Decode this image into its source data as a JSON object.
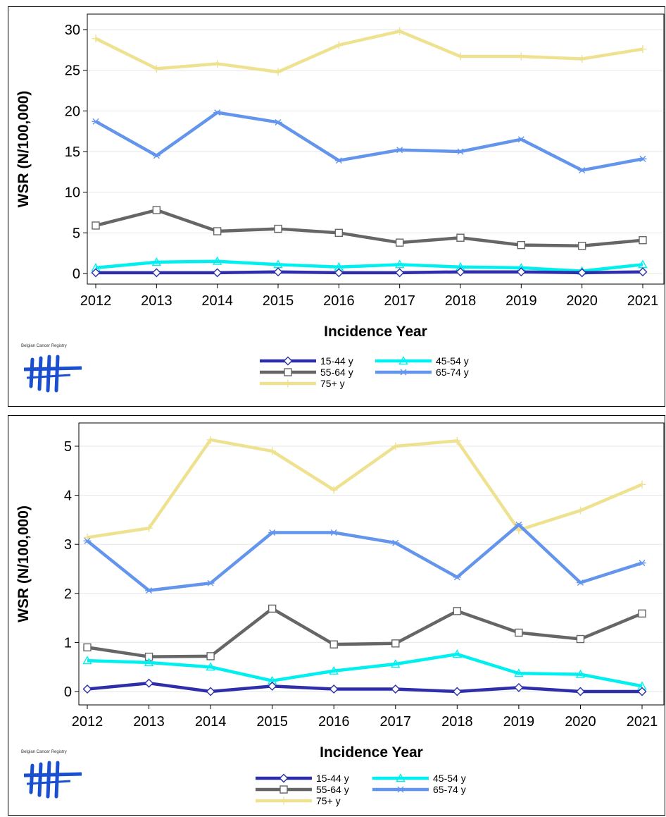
{
  "logo": {
    "text": "Belgian Cancer Registry"
  },
  "colors": {
    "15-44 y": "#2e2eaa",
    "45-54 y": "#00f0f0",
    "55-64 y": "#666666",
    "65-74 y": "#6495ed",
    "75+ y": "#eee290"
  },
  "chart_data": [
    {
      "type": "line",
      "xlabel": "Incidence Year",
      "ylabel": "WSR (N/100,000)",
      "x": [
        2012,
        2013,
        2014,
        2015,
        2016,
        2017,
        2018,
        2019,
        2020,
        2021
      ],
      "ylim": [
        0,
        30
      ],
      "yticks": [
        0,
        5,
        10,
        15,
        20,
        25,
        30
      ],
      "grid": true,
      "legend": "bottom-center",
      "series": [
        {
          "name": "15-44 y",
          "marker": "diamond",
          "values": [
            0.1,
            0.1,
            0.1,
            0.2,
            0.1,
            0.1,
            0.2,
            0.2,
            0.1,
            0.2
          ]
        },
        {
          "name": "45-54 y",
          "marker": "triangle",
          "values": [
            0.7,
            1.4,
            1.5,
            1.1,
            0.8,
            1.1,
            0.8,
            0.7,
            0.3,
            1.1
          ]
        },
        {
          "name": "55-64 y",
          "marker": "square",
          "values": [
            5.9,
            7.8,
            5.2,
            5.5,
            5.0,
            3.8,
            4.4,
            3.5,
            3.4,
            4.1
          ]
        },
        {
          "name": "65-74 y",
          "marker": "star",
          "values": [
            18.7,
            14.5,
            19.8,
            18.6,
            13.9,
            15.2,
            15.0,
            16.5,
            12.7,
            14.1
          ]
        },
        {
          "name": "75+ y",
          "marker": "plus",
          "values": [
            28.9,
            25.2,
            25.8,
            24.8,
            28.1,
            29.8,
            26.7,
            26.7,
            26.4,
            27.6
          ]
        }
      ]
    },
    {
      "type": "line",
      "xlabel": "Incidence Year",
      "ylabel": "WSR (N/100,000)",
      "x": [
        2012,
        2013,
        2014,
        2015,
        2016,
        2017,
        2018,
        2019,
        2020,
        2021
      ],
      "ylim": [
        0,
        5
      ],
      "yticks": [
        0,
        1,
        2,
        3,
        4,
        5
      ],
      "grid": true,
      "legend": "bottom-center",
      "series": [
        {
          "name": "15-44 y",
          "marker": "diamond",
          "values": [
            0.05,
            0.17,
            0.0,
            0.11,
            0.05,
            0.05,
            0.0,
            0.08,
            0.0,
            0.0
          ]
        },
        {
          "name": "45-54 y",
          "marker": "triangle",
          "values": [
            0.63,
            0.59,
            0.5,
            0.22,
            0.42,
            0.56,
            0.76,
            0.37,
            0.35,
            0.11
          ]
        },
        {
          "name": "55-64 y",
          "marker": "square",
          "values": [
            0.9,
            0.71,
            0.72,
            1.69,
            0.96,
            0.98,
            1.64,
            1.2,
            1.07,
            1.59
          ]
        },
        {
          "name": "65-74 y",
          "marker": "star",
          "values": [
            3.07,
            2.06,
            2.21,
            3.24,
            3.24,
            3.03,
            2.33,
            3.4,
            2.22,
            2.62
          ]
        },
        {
          "name": "75+ y",
          "marker": "plus",
          "values": [
            3.14,
            3.33,
            5.13,
            4.9,
            4.11,
            5.0,
            5.11,
            3.29,
            3.69,
            4.22
          ]
        }
      ]
    }
  ]
}
